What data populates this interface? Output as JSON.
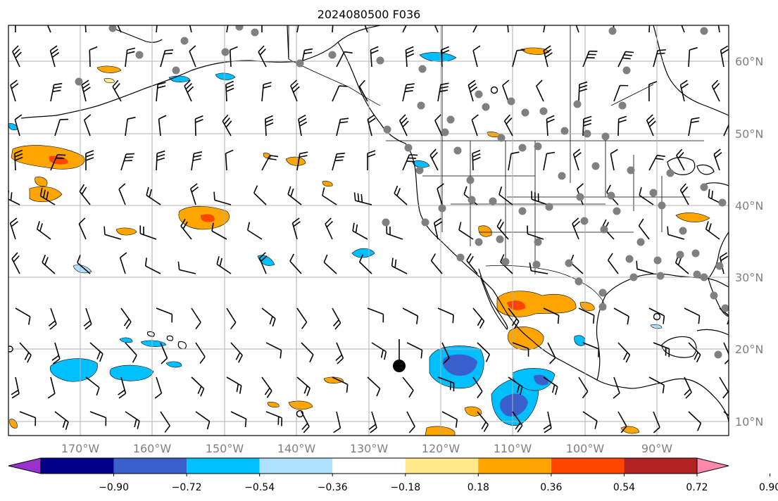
{
  "title": "2024080500 F036",
  "map": {
    "lon_range": [
      -180,
      -80
    ],
    "lat_range": [
      8,
      65
    ],
    "lon_ticks": [
      "170°W",
      "160°W",
      "150°W",
      "140°W",
      "130°W",
      "120°W",
      "110°W",
      "100°W",
      "90°W"
    ],
    "lat_ticks": [
      "60°N",
      "50°N",
      "40°N",
      "30°N",
      "20°N",
      "10°N"
    ],
    "grid": true
  },
  "colorbar": {
    "labels": [
      "−0.90",
      "−0.72",
      "−0.54",
      "−0.36",
      "−0.18",
      "0.18",
      "0.36",
      "0.54",
      "0.72",
      "0.90"
    ],
    "colors": [
      "#9932cc",
      "#00008b",
      "#3a5fcd",
      "#00bfff",
      "#b0e2ff",
      "#ffffff",
      "#ffe98a",
      "#ffa500",
      "#ff4500",
      "#b22222",
      "#ff88aa"
    ]
  },
  "colors": {
    "negative_light": "#b0e2ff",
    "negative_mid": "#00bfff",
    "negative_strong": "#3a5fcd",
    "negative_deep": "#00008b",
    "positive_light": "#ffe98a",
    "positive_mid": "#ffa500",
    "positive_strong": "#ff4500",
    "station": "#808080"
  }
}
